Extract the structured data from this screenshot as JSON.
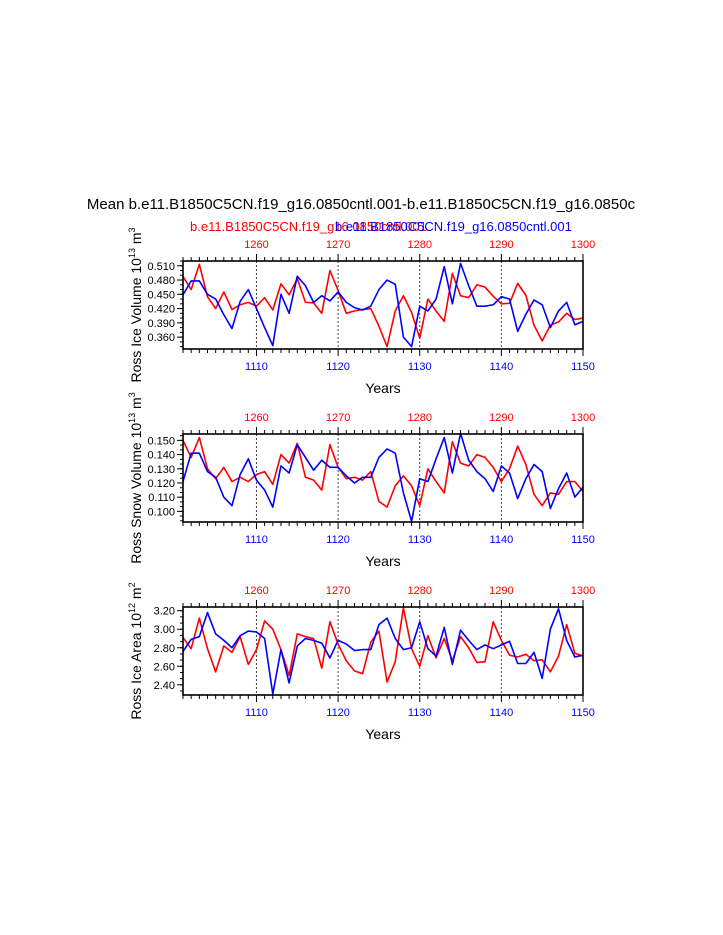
{
  "page": {
    "title": "Mean b.e11.B1850C5CN.f19_g16.0850cntl.001-b.e11.B1850C5CN.f19_g16.0850c",
    "subtitle_red": "b.e11.B1850C5CN.f19_g16.0850cntl.001",
    "subtitle_blue": "b.e11.B1850C5CN.f19_g16.0850cntl.001"
  },
  "colors": {
    "red": "#ff0000",
    "blue": "#0000ff",
    "axis": "#000000"
  },
  "chart_data": [
    {
      "type": "line",
      "ylabel": "Ross Ice Volume 10",
      "ylabel_exp": "13",
      "ylabel_unit": " m",
      "ylabel_unit_exp": "3",
      "xlabel": "Years",
      "ylim": [
        0.335,
        0.52
      ],
      "yticks": [
        0.36,
        0.39,
        0.42,
        0.45,
        0.48,
        0.51
      ],
      "ytick_labels": [
        "0.360",
        "0.390",
        "0.420",
        "0.450",
        "0.480",
        "0.510"
      ],
      "bottom_xlim": [
        1101,
        1150
      ],
      "bottom_xticks": [
        1110,
        1120,
        1130,
        1140,
        1150
      ],
      "top_xlim": [
        1251,
        1300
      ],
      "top_xticks": [
        1260,
        1270,
        1280,
        1290,
        1300
      ],
      "series": [
        {
          "name": "red",
          "axis": "top",
          "values": [
            0.487,
            0.46,
            0.513,
            0.445,
            0.42,
            0.455,
            0.418,
            0.428,
            0.433,
            0.425,
            0.443,
            0.417,
            0.472,
            0.449,
            0.483,
            0.433,
            0.432,
            0.41,
            0.5,
            0.458,
            0.41,
            0.415,
            0.418,
            0.42,
            0.383,
            0.34,
            0.415,
            0.447,
            0.412,
            0.358,
            0.44,
            0.415,
            0.393,
            0.494,
            0.447,
            0.443,
            0.47,
            0.465,
            0.446,
            0.43,
            0.431,
            0.473,
            0.448,
            0.385,
            0.352,
            0.385,
            0.392,
            0.41,
            0.397,
            0.4
          ]
        },
        {
          "name": "blue",
          "axis": "bottom",
          "values": [
            0.449,
            0.478,
            0.478,
            0.45,
            0.44,
            0.407,
            0.378,
            0.435,
            0.46,
            0.42,
            0.38,
            0.342,
            0.45,
            0.41,
            0.488,
            0.468,
            0.433,
            0.447,
            0.436,
            0.455,
            0.433,
            0.422,
            0.417,
            0.425,
            0.46,
            0.48,
            0.471,
            0.36,
            0.34,
            0.425,
            0.415,
            0.44,
            0.508,
            0.43,
            0.515,
            0.468,
            0.425,
            0.425,
            0.428,
            0.445,
            0.44,
            0.372,
            0.408,
            0.438,
            0.428,
            0.38,
            0.415,
            0.433,
            0.386,
            0.393
          ]
        }
      ]
    },
    {
      "type": "line",
      "ylabel": "Ross Snow Volume 10",
      "ylabel_exp": "13",
      "ylabel_unit": " m",
      "ylabel_unit_exp": "3",
      "xlabel": "Years",
      "ylim": [
        0.0925,
        0.1545
      ],
      "yticks": [
        0.1,
        0.11,
        0.12,
        0.13,
        0.14,
        0.15
      ],
      "ytick_labels": [
        "0.100",
        "0.110",
        "0.120",
        "0.130",
        "0.140",
        "0.150"
      ],
      "bottom_xlim": [
        1101,
        1150
      ],
      "bottom_xticks": [
        1110,
        1120,
        1130,
        1140,
        1150
      ],
      "top_xlim": [
        1251,
        1300
      ],
      "top_xticks": [
        1260,
        1270,
        1280,
        1290,
        1300
      ],
      "series": [
        {
          "name": "red",
          "axis": "top",
          "values": [
            0.15,
            0.138,
            0.152,
            0.13,
            0.123,
            0.131,
            0.121,
            0.124,
            0.121,
            0.126,
            0.128,
            0.119,
            0.14,
            0.134,
            0.148,
            0.124,
            0.122,
            0.115,
            0.147,
            0.131,
            0.123,
            0.124,
            0.122,
            0.128,
            0.107,
            0.103,
            0.118,
            0.125,
            0.118,
            0.104,
            0.13,
            0.121,
            0.113,
            0.149,
            0.134,
            0.132,
            0.14,
            0.138,
            0.131,
            0.121,
            0.13,
            0.146,
            0.133,
            0.112,
            0.104,
            0.113,
            0.112,
            0.121,
            0.121,
            0.114
          ]
        },
        {
          "name": "blue",
          "axis": "bottom",
          "values": [
            0.121,
            0.141,
            0.141,
            0.128,
            0.124,
            0.11,
            0.104,
            0.126,
            0.137,
            0.122,
            0.115,
            0.103,
            0.132,
            0.127,
            0.147,
            0.138,
            0.129,
            0.136,
            0.131,
            0.131,
            0.125,
            0.12,
            0.124,
            0.124,
            0.138,
            0.144,
            0.141,
            0.113,
            0.093,
            0.123,
            0.121,
            0.137,
            0.152,
            0.127,
            0.155,
            0.136,
            0.128,
            0.123,
            0.114,
            0.132,
            0.127,
            0.109,
            0.123,
            0.133,
            0.128,
            0.102,
            0.116,
            0.127,
            0.11,
            0.117
          ]
        }
      ]
    },
    {
      "type": "line",
      "ylabel": "Ross Ice Area 10",
      "ylabel_exp": "12",
      "ylabel_unit": " m",
      "ylabel_unit_exp": "2",
      "xlabel": "Years",
      "ylim": [
        2.29,
        3.24
      ],
      "yticks": [
        2.4,
        2.6,
        2.8,
        3.0,
        3.2
      ],
      "ytick_labels": [
        "2.40",
        "2.60",
        "2.80",
        "3.00",
        "3.20"
      ],
      "bottom_xlim": [
        1101,
        1150
      ],
      "bottom_xticks": [
        1110,
        1120,
        1130,
        1140,
        1150
      ],
      "top_xlim": [
        1251,
        1300
      ],
      "top_xticks": [
        1260,
        1270,
        1280,
        1290,
        1300
      ],
      "series": [
        {
          "name": "red",
          "axis": "top",
          "values": [
            2.91,
            2.79,
            3.12,
            2.79,
            2.54,
            2.82,
            2.75,
            2.92,
            2.62,
            2.78,
            3.09,
            3.0,
            2.78,
            2.5,
            2.95,
            2.92,
            2.9,
            2.58,
            3.08,
            2.84,
            2.66,
            2.55,
            2.52,
            2.86,
            2.98,
            2.43,
            2.65,
            3.23,
            2.79,
            2.6,
            2.93,
            2.69,
            2.9,
            2.66,
            2.92,
            2.8,
            2.64,
            2.65,
            3.08,
            2.88,
            2.72,
            2.7,
            2.73,
            2.66,
            2.67,
            2.54,
            2.71,
            3.05,
            2.74,
            2.71
          ]
        },
        {
          "name": "blue",
          "axis": "bottom",
          "values": [
            2.76,
            2.89,
            2.92,
            3.18,
            2.95,
            2.88,
            2.8,
            2.93,
            2.98,
            2.97,
            2.9,
            2.3,
            2.78,
            2.42,
            2.82,
            2.9,
            2.88,
            2.85,
            2.69,
            2.88,
            2.84,
            2.77,
            2.78,
            2.78,
            3.05,
            3.12,
            2.9,
            2.78,
            2.8,
            3.08,
            2.79,
            2.71,
            3.02,
            2.62,
            2.99,
            2.88,
            2.78,
            2.83,
            2.79,
            2.83,
            2.87,
            2.63,
            2.63,
            2.75,
            2.47,
            3.0,
            3.22,
            2.88,
            2.7,
            2.72
          ]
        }
      ]
    }
  ]
}
